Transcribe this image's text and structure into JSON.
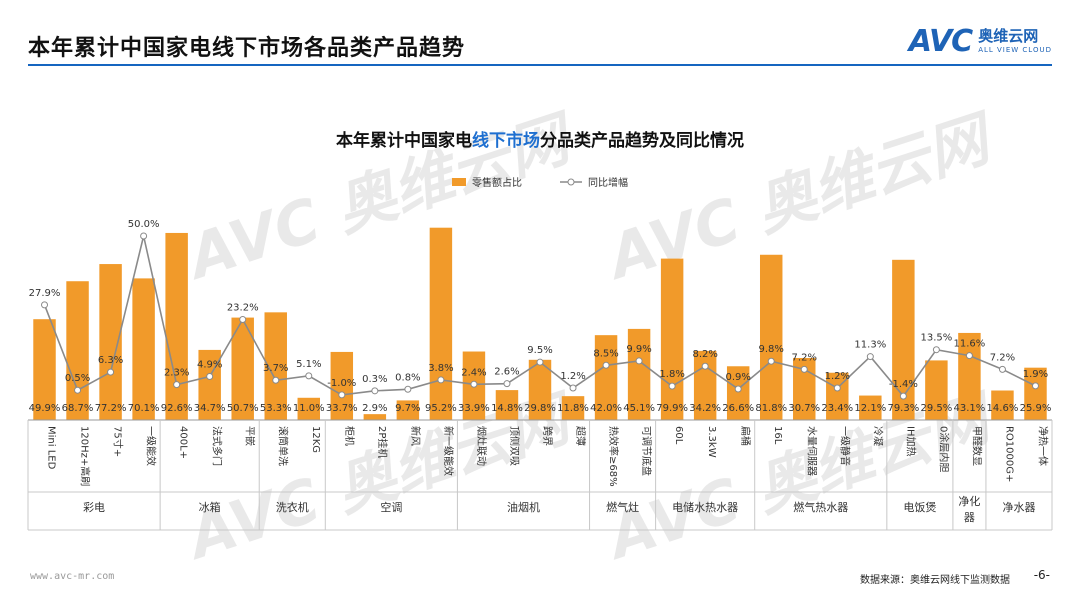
{
  "page": {
    "title": "本年累计中国家电线下市场各品类产品趋势",
    "logo_mark": "AVC",
    "logo_cn": "奥维云网",
    "logo_en": "ALL VIEW CLOUD",
    "watermark_mark": "AVC",
    "watermark_cn": "奥维云网",
    "watermark_en": "ALL VIEW CLOUD",
    "website": "www.avc-mr.com",
    "source": "数据来源：奥维云网线下监测数据",
    "page_number": "-6-"
  },
  "colors": {
    "bar": "#f19a2a",
    "line": "#8a8a8a",
    "highlight": "#1e6fd0",
    "brand": "#1e63b6"
  },
  "chart_data": {
    "type": "bar",
    "title_parts": [
      "本年累计中国家电",
      "线下市场",
      "分品类产品趋势及同比情况"
    ],
    "legend": {
      "bar": "零售额占比",
      "line": "同比增幅"
    },
    "categories": [
      "Mini LED",
      "120Hz+高刷",
      "75寸+",
      "一级能效",
      "400L+",
      "法式多门",
      "平嵌",
      "滚筒单洗",
      "12KG",
      "柜机",
      "2P挂机",
      "新风",
      "新一级能效",
      "烟灶联动",
      "顶侧双吸",
      "跨界",
      "超薄",
      "热效率≥68%",
      "可调节底盘",
      "60L",
      "3.3kW",
      "扁桶",
      "16L",
      "水量伺服器",
      "一级静音",
      "冷凝",
      "IH加热",
      "0涂层内胆",
      "甲醛数显",
      "RO1000G+",
      "净热一体"
    ],
    "groups": [
      {
        "name": "彩电",
        "count": 4
      },
      {
        "name": "冰箱",
        "count": 3
      },
      {
        "name": "洗衣机",
        "count": 2
      },
      {
        "name": "空调",
        "count": 4
      },
      {
        "name": "油烟机",
        "count": 4
      },
      {
        "name": "燃气灶",
        "count": 2
      },
      {
        "name": "电储水热水器",
        "count": 3
      },
      {
        "name": "燃气热水器",
        "count": 4
      },
      {
        "name": "电饭煲",
        "count": 2
      },
      {
        "name": "净化器",
        "count": 1
      },
      {
        "name": "净水器",
        "count": 2
      }
    ],
    "series": [
      {
        "name": "零售额占比",
        "kind": "bar",
        "values": [
          49.9,
          68.7,
          77.2,
          70.1,
          92.6,
          34.7,
          50.7,
          53.3,
          11.0,
          33.7,
          2.9,
          9.7,
          95.2,
          33.9,
          14.8,
          29.8,
          11.8,
          42.0,
          45.1,
          79.9,
          34.2,
          26.6,
          81.8,
          30.7,
          23.4,
          12.1,
          79.3,
          29.5,
          43.1,
          14.6,
          25.9
        ],
        "labels": [
          "49.9%",
          "68.7%",
          "77.2%",
          "70.1%",
          "92.6%",
          "34.7%",
          "50.7%",
          "53.3%",
          "11.0%",
          "33.7%",
          "2.9%",
          "9.7%",
          "95.2%",
          "33.9%",
          "14.8%",
          "29.8%",
          "11.8%",
          "42.0%",
          "45.1%",
          "79.9%",
          "34.2%",
          "26.6%",
          "81.8%",
          "30.7%",
          "23.4%",
          "12.1%",
          "79.3%",
          "29.5%",
          "43.1%",
          "14.6%",
          "25.9%"
        ]
      },
      {
        "name": "同比增幅",
        "kind": "line",
        "values": [
          27.9,
          0.5,
          6.3,
          50.0,
          2.3,
          4.9,
          23.2,
          3.7,
          5.1,
          -1.0,
          0.3,
          0.8,
          3.8,
          2.4,
          2.6,
          9.5,
          1.2,
          8.5,
          9.9,
          1.8,
          8.2,
          0.9,
          9.8,
          7.2,
          1.2,
          11.3,
          -1.4,
          13.5,
          11.6,
          7.2,
          1.9
        ],
        "labels": [
          "27.9%",
          "0.5%",
          "6.3%",
          "50.0%",
          "2.3%",
          "4.9%",
          "23.2%",
          "3.7%",
          "5.1%",
          "-1.0%",
          "0.3%",
          "0.8%",
          "3.8%",
          "2.4%",
          "2.6%",
          "9.5%",
          "1.2%",
          "8.5%",
          "9.9%",
          "1.8%",
          "8.2%",
          "0.9%",
          "9.8%",
          "7.2%",
          "1.2%",
          "11.3%",
          "-1.4%",
          "13.5%",
          "11.6%",
          "7.2%",
          "1.9%"
        ]
      }
    ],
    "ylim_bar": [
      0,
      100
    ],
    "ylim_line": [
      -10,
      80
    ],
    "legend_position": "top-center",
    "grid": false
  }
}
